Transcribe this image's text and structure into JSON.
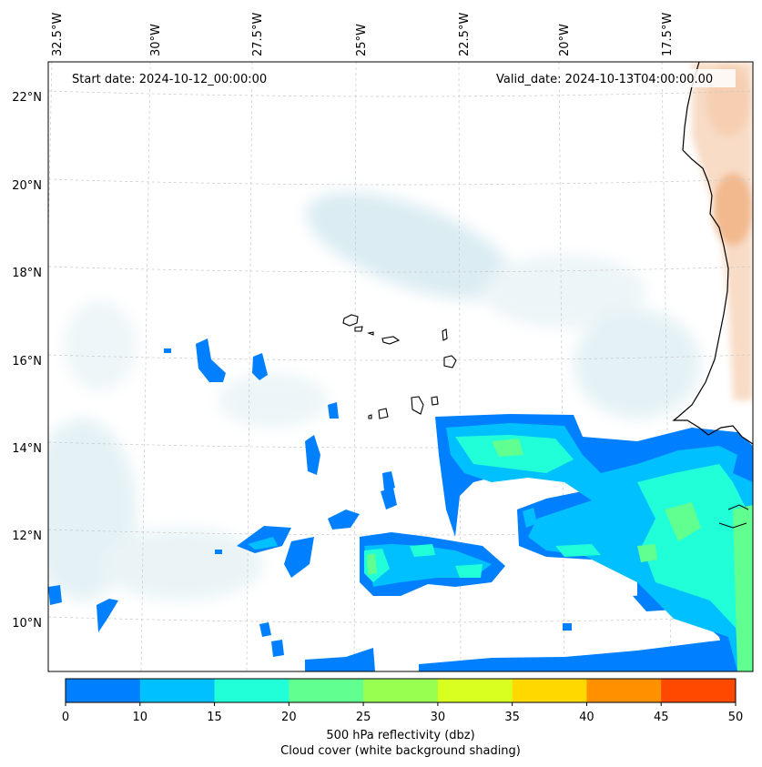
{
  "map": {
    "start_date": "Start date: 2024-10-12_00:00:00",
    "valid_date": "Valid_date: 2024-10-13T04:00:00.00",
    "lon_labels": [
      "32.5°W",
      "30°W",
      "27.5°W",
      "25°W",
      "22.5°W",
      "20°W",
      "17.5°W"
    ],
    "lat_labels": [
      "22°N",
      "20°N",
      "18°N",
      "16°N",
      "14°N",
      "12°N",
      "10°N"
    ],
    "land_color": "#f4c7a8",
    "cloud_color": "#d7ebf0"
  },
  "colorbar": {
    "label": "500 hPa reflectivity (dbz)",
    "sublabel": "Cloud cover (white background shading)",
    "ticks": [
      "0",
      "10",
      "15",
      "20",
      "25",
      "30",
      "35",
      "40",
      "45",
      "50"
    ],
    "colors": [
      "#0080ff",
      "#00c0ff",
      "#20ffd8",
      "#60ff90",
      "#98ff50",
      "#d8ff20",
      "#ffd800",
      "#ff9000",
      "#ff4800"
    ]
  }
}
